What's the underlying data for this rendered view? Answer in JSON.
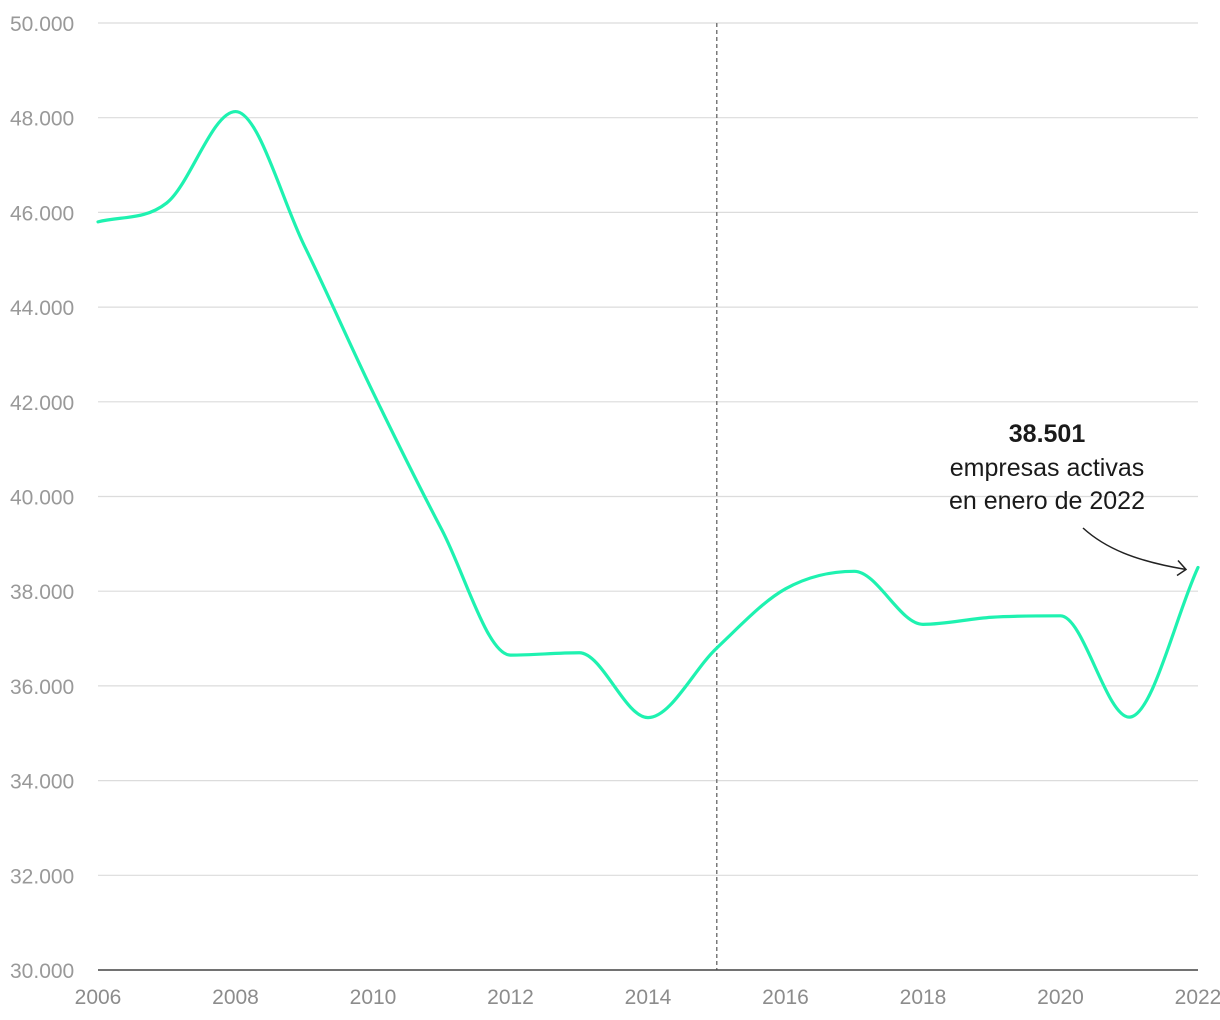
{
  "chart_data": {
    "type": "line",
    "x": [
      2006,
      2007,
      2008,
      2009,
      2010,
      2011,
      2012,
      2013,
      2014,
      2015,
      2016,
      2017,
      2018,
      2019,
      2020,
      2021,
      2022
    ],
    "series": [
      {
        "values": [
          45800,
          46200,
          48130,
          45300,
          42200,
          39300,
          36650,
          36700,
          35330,
          36800,
          38050,
          38420,
          37300,
          37450,
          37480,
          35340,
          38501
        ]
      }
    ],
    "xlabel": "",
    "ylabel": "",
    "xlim": [
      2006,
      2022
    ],
    "ylim": [
      30000,
      50000
    ],
    "x_ticks": [
      "2006",
      "2008",
      "2010",
      "2012",
      "2014",
      "2016",
      "2018",
      "2020",
      "2022"
    ],
    "y_ticks": [
      "30.000",
      "32.000",
      "34.000",
      "36.000",
      "38.000",
      "40.000",
      "42.000",
      "44.000",
      "46.000",
      "48.000",
      "50.000"
    ],
    "grid": true,
    "reference_line_x": 2015,
    "line_color": "#1ef2b0",
    "annotation": {
      "value": "38.501",
      "line1": "empresas activas",
      "line2": "en enero de 2022",
      "x": 2022,
      "y": 38501
    }
  }
}
